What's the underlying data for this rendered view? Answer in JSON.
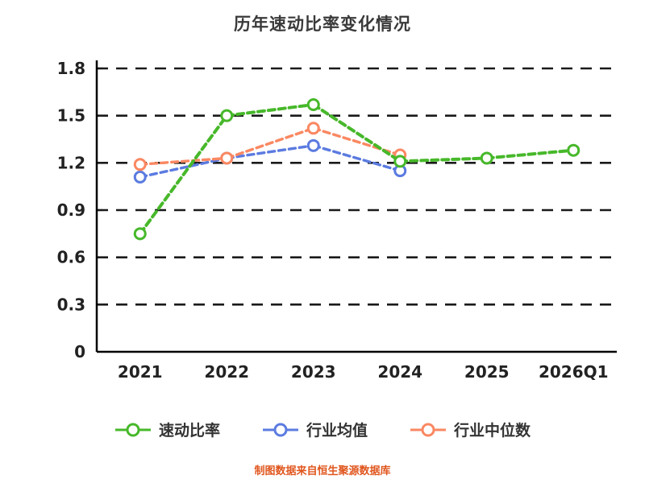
{
  "title": "历年速动比率变化情况",
  "footer": "制图数据来自恒生聚源数据库",
  "colors": {
    "quick_ratio": "#47b82a",
    "industry_avg": "#5b7be0",
    "industry_median": "#fa8862",
    "grid": "#1a1a1a",
    "axis": "#000000",
    "title_text": "#3a3a3a",
    "footer_text": "#e0561e"
  },
  "chart_data": {
    "type": "line",
    "title": "历年速动比率变化情况",
    "categories": [
      "2021",
      "2022",
      "2023",
      "2024",
      "2025",
      "2026Q1"
    ],
    "series": [
      {
        "name": "速动比率",
        "color": "#47b82a",
        "values": [
          0.75,
          1.5,
          1.57,
          1.21,
          1.23,
          1.28
        ]
      },
      {
        "name": "行业均值",
        "color": "#5b7be0",
        "values": [
          1.11,
          1.23,
          1.31,
          1.15,
          null,
          null
        ]
      },
      {
        "name": "行业中位数",
        "color": "#fa8862",
        "values": [
          1.19,
          1.23,
          1.42,
          1.25,
          null,
          null
        ]
      }
    ],
    "ylim": [
      0,
      1.8
    ],
    "yticks": [
      0,
      0.3,
      0.6,
      0.9,
      1.2,
      1.5,
      1.8
    ],
    "grid": "dashed-horizontal",
    "line_style": "dashed",
    "marker": "open-circle",
    "legend_position": "bottom",
    "xlabel": "",
    "ylabel": ""
  }
}
